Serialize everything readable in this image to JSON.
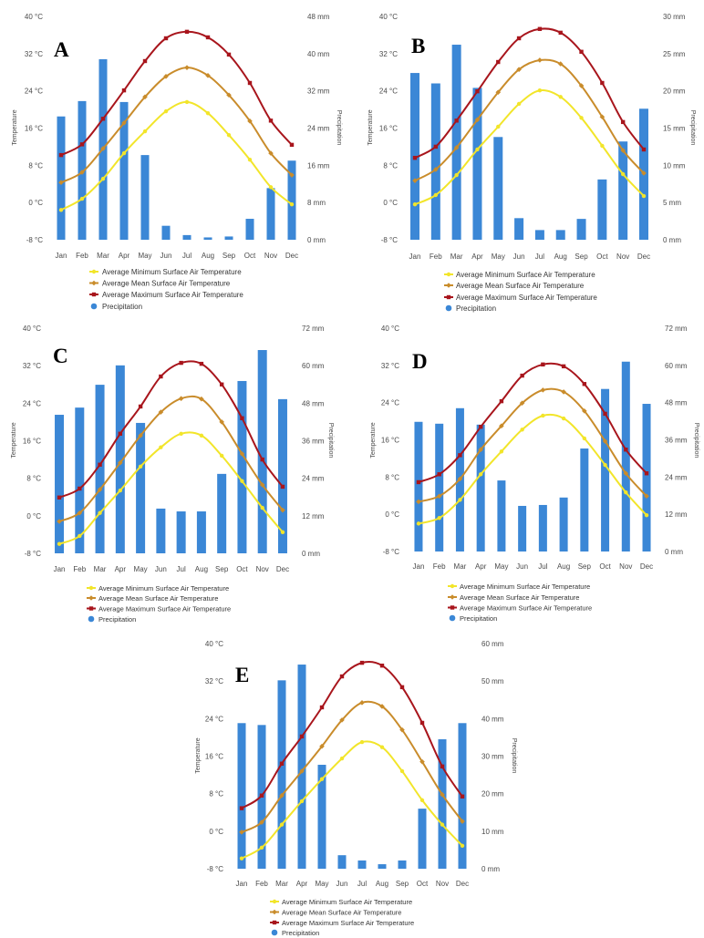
{
  "chart_data": [
    {
      "panel_label": "A",
      "type": "bar+line",
      "categories": [
        "Jan",
        "Feb",
        "Mar",
        "Apr",
        "May",
        "Jun",
        "Jul",
        "Aug",
        "Sep",
        "Oct",
        "Nov",
        "Dec"
      ],
      "ylabel": "Temperature",
      "y2label": "Precipitation",
      "ylim": [
        -8,
        40
      ],
      "y2lim": [
        0,
        48
      ],
      "yticks": [
        "40 °C",
        "32 °C",
        "24 °C",
        "16 °C",
        "8 °C",
        "0 °C",
        "-8 °C"
      ],
      "y2ticks": [
        "48 mm",
        "40 mm",
        "32 mm",
        "24 mm",
        "16 mm",
        "8 mm",
        "0 mm"
      ],
      "grid": false,
      "legend": "bottom",
      "series": [
        {
          "name": "Average Minimum Surface Air Temperature",
          "type": "line",
          "axis": "left",
          "color": "#f2e52a",
          "values": [
            -1.6,
            0.8,
            5.1,
            10.6,
            15.3,
            19.6,
            21.6,
            19.2,
            14.5,
            9.2,
            3.3,
            -0.4
          ]
        },
        {
          "name": "Average Mean Surface Air Temperature",
          "type": "line",
          "axis": "left",
          "color": "#c98c2b",
          "values": [
            4.3,
            6.5,
            11.6,
            17.1,
            22.7,
            27.1,
            29.0,
            27.3,
            23.1,
            17.5,
            10.6,
            5.9
          ]
        },
        {
          "name": "Average Maximum Surface Air Temperature",
          "type": "line",
          "axis": "left",
          "color": "#a8151c",
          "values": [
            10.2,
            12.5,
            18.0,
            24.1,
            30.4,
            35.3,
            36.7,
            35.5,
            31.8,
            25.7,
            17.6,
            12.4
          ]
        },
        {
          "name": "Precipitation",
          "type": "bar",
          "axis": "right",
          "color": "#3b87d6",
          "values": [
            26.5,
            29.8,
            38.8,
            29.6,
            18.2,
            3.0,
            1.0,
            0.5,
            0.7,
            4.5,
            11.1,
            17.0
          ]
        }
      ]
    },
    {
      "panel_label": "B",
      "type": "bar+line",
      "categories": [
        "Jan",
        "Feb",
        "Mar",
        "Apr",
        "May",
        "Jun",
        "Jul",
        "Aug",
        "Sep",
        "Oct",
        "Nov",
        "Dec"
      ],
      "ylabel": "Temperature",
      "y2label": "Precipitation",
      "ylim": [
        -8,
        40
      ],
      "y2lim": [
        0,
        30
      ],
      "yticks": [
        "40 °C",
        "32 °C",
        "24 °C",
        "16 °C",
        "8 °C",
        "0 °C",
        "-8 °C"
      ],
      "y2ticks": [
        "30 mm",
        "25 mm",
        "20 mm",
        "15 mm",
        "10 mm",
        "5 mm",
        "0 mm"
      ],
      "grid": false,
      "legend": "bottom",
      "series": [
        {
          "name": "Average Minimum Surface Air Temperature",
          "type": "line",
          "axis": "left",
          "color": "#f2e52a",
          "values": [
            -0.4,
            1.6,
            5.9,
            11.4,
            16.3,
            21.2,
            24.1,
            22.7,
            18.2,
            12.2,
            6.1,
            1.4
          ]
        },
        {
          "name": "Average Mean Surface Air Temperature",
          "type": "line",
          "axis": "left",
          "color": "#c98c2b",
          "values": [
            4.7,
            7.1,
            11.8,
            17.8,
            23.7,
            28.6,
            30.6,
            29.8,
            25.1,
            18.4,
            11.2,
            6.3
          ]
        },
        {
          "name": "Average Maximum Surface Air Temperature",
          "type": "line",
          "axis": "left",
          "color": "#a8151c",
          "values": [
            9.6,
            12.0,
            17.6,
            23.9,
            30.2,
            35.3,
            37.3,
            36.5,
            32.4,
            25.7,
            17.3,
            11.4
          ]
        },
        {
          "name": "Precipitation",
          "type": "bar",
          "axis": "right",
          "color": "#3b87d6",
          "values": [
            22.4,
            21.0,
            26.2,
            20.4,
            13.8,
            2.9,
            1.3,
            1.3,
            2.8,
            8.1,
            13.2,
            17.6
          ]
        }
      ]
    },
    {
      "panel_label": "C",
      "type": "bar+line",
      "categories": [
        "Jan",
        "Feb",
        "Mar",
        "Apr",
        "May",
        "Jun",
        "Jul",
        "Aug",
        "Sep",
        "Oct",
        "Nov",
        "Dec"
      ],
      "ylabel": "Temperature",
      "y2label": "Precipitation",
      "ylim": [
        -8,
        40
      ],
      "y2lim": [
        0,
        72
      ],
      "yticks": [
        "40 °C",
        "32 °C",
        "24 °C",
        "16 °C",
        "8 °C",
        "0 °C",
        "-8 °C"
      ],
      "y2ticks": [
        "72 mm",
        "60 mm",
        "48 mm",
        "36 mm",
        "24 mm",
        "12 mm",
        "0 mm"
      ],
      "grid": false,
      "legend": "bottom",
      "series": [
        {
          "name": "Average Minimum Surface Air Temperature",
          "type": "line",
          "axis": "left",
          "color": "#f2e52a",
          "values": [
            -6.0,
            -4.3,
            0.6,
            5.4,
            10.5,
            14.6,
            17.5,
            17.1,
            12.8,
            7.4,
            1.7,
            -3.5
          ]
        },
        {
          "name": "Average Mean Surface Air Temperature",
          "type": "line",
          "axis": "left",
          "color": "#c98c2b",
          "values": [
            -1.2,
            0.6,
            5.6,
            11.3,
            17.1,
            22.1,
            25.0,
            24.9,
            20.0,
            13.2,
            6.6,
            1.2
          ]
        },
        {
          "name": "Average Maximum Surface Air Temperature",
          "type": "line",
          "axis": "left",
          "color": "#a8151c",
          "values": [
            3.9,
            5.8,
            10.9,
            17.5,
            23.3,
            29.7,
            32.6,
            32.4,
            28.0,
            20.8,
            12.0,
            6.2
          ]
        },
        {
          "name": "Precipitation",
          "type": "bar",
          "axis": "right",
          "color": "#3b87d6",
          "values": [
            44.3,
            46.6,
            53.9,
            60.1,
            41.7,
            14.3,
            13.4,
            13.4,
            25.4,
            55.1,
            65.0,
            49.3
          ]
        }
      ]
    },
    {
      "panel_label": "D",
      "type": "bar+line",
      "categories": [
        "Jan",
        "Feb",
        "Mar",
        "Apr",
        "May",
        "Jun",
        "Jul",
        "Aug",
        "Sep",
        "Oct",
        "Nov",
        "Dec"
      ],
      "ylabel": "Temperature",
      "y2label": "Precipitation",
      "ylim": [
        -8,
        40
      ],
      "y2lim": [
        0,
        72
      ],
      "yticks": [
        "40 °C",
        "32 °C",
        "24 °C",
        "16 °C",
        "8 °C",
        "0 °C",
        "-8 °C"
      ],
      "y2ticks": [
        "72 mm",
        "60 mm",
        "48 mm",
        "36 mm",
        "24 mm",
        "12 mm",
        "0 mm"
      ],
      "grid": false,
      "legend": "bottom",
      "series": [
        {
          "name": "Average Minimum Surface Air Temperature",
          "type": "line",
          "axis": "left",
          "color": "#f2e52a",
          "values": [
            -2.0,
            -0.8,
            3.1,
            8.6,
            13.5,
            18.2,
            21.2,
            20.6,
            16.3,
            10.6,
            4.7,
            -0.2
          ]
        },
        {
          "name": "Average Mean Surface Air Temperature",
          "type": "line",
          "axis": "left",
          "color": "#c98c2b",
          "values": [
            2.7,
            3.9,
            7.6,
            13.9,
            19.0,
            23.9,
            26.7,
            26.3,
            22.2,
            15.7,
            8.8,
            3.9
          ]
        },
        {
          "name": "Average Maximum Surface Air Temperature",
          "type": "line",
          "axis": "left",
          "color": "#a8151c",
          "values": [
            6.9,
            8.6,
            12.7,
            18.8,
            24.3,
            29.8,
            32.2,
            31.8,
            28.0,
            21.6,
            13.9,
            8.8
          ]
        },
        {
          "name": "Precipitation",
          "type": "bar",
          "axis": "right",
          "color": "#3b87d6",
          "values": [
            41.8,
            41.2,
            46.2,
            40.9,
            22.9,
            14.7,
            15.0,
            17.4,
            33.2,
            52.4,
            61.2,
            47.6
          ]
        }
      ]
    },
    {
      "panel_label": "E",
      "type": "bar+line",
      "categories": [
        "Jan",
        "Feb",
        "Mar",
        "Apr",
        "May",
        "Jun",
        "Jul",
        "Aug",
        "Sep",
        "Oct",
        "Nov",
        "Dec"
      ],
      "ylabel": "Temperature",
      "y2label": "Precipitation",
      "ylim": [
        -8,
        40
      ],
      "y2lim": [
        0,
        60
      ],
      "yticks": [
        "40 °C",
        "32 °C",
        "24 °C",
        "16 °C",
        "8 °C",
        "0 °C",
        "-8 °C"
      ],
      "y2ticks": [
        "60 mm",
        "50 mm",
        "40 mm",
        "30 mm",
        "20 mm",
        "10 mm",
        "0 mm"
      ],
      "grid": false,
      "legend": "bottom",
      "series": [
        {
          "name": "Average Minimum Surface Air Temperature",
          "type": "line",
          "axis": "left",
          "color": "#f2e52a",
          "values": [
            -5.8,
            -3.5,
            1.4,
            6.4,
            11.1,
            15.5,
            19.0,
            17.9,
            12.8,
            6.6,
            1.4,
            -3.1
          ]
        },
        {
          "name": "Average Mean Surface Air Temperature",
          "type": "line",
          "axis": "left",
          "color": "#c98c2b",
          "values": [
            -0.2,
            1.9,
            7.6,
            12.8,
            18.1,
            23.7,
            27.4,
            26.6,
            21.6,
            14.8,
            7.8,
            2.1
          ]
        },
        {
          "name": "Average Maximum Surface Air Temperature",
          "type": "line",
          "axis": "left",
          "color": "#a8151c",
          "values": [
            4.9,
            7.6,
            14.4,
            20.2,
            26.4,
            33.0,
            35.9,
            35.3,
            30.7,
            23.1,
            13.8,
            7.4
          ]
        },
        {
          "name": "Precipitation",
          "type": "bar",
          "axis": "right",
          "color": "#3b87d6",
          "values": [
            38.8,
            38.3,
            50.2,
            54.4,
            27.7,
            3.6,
            2.2,
            1.2,
            2.2,
            16.0,
            34.5,
            38.8
          ]
        }
      ]
    }
  ]
}
